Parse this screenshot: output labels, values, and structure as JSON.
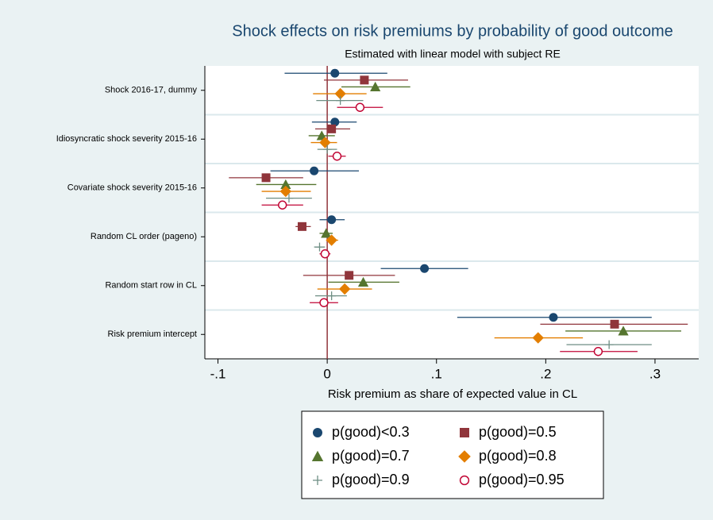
{
  "chart_data": {
    "type": "coefplot",
    "title": "Shock effects on risk premiums by probability of good outcome",
    "subtitle": "Estimated with linear model with subject RE",
    "x_label": "Risk premium as share of expected value in CL",
    "categories": [
      "Shock 2016-17, dummy",
      "Idiosyncratic shock severity 2015-16",
      "Covariate shock severity 2015-16",
      "Random CL order (pageno)",
      "Random start row in CL",
      "Risk premium intercept"
    ],
    "xlim": [
      -0.112,
      0.34
    ],
    "xticks": [
      {
        "value": -0.1,
        "label": "-.1"
      },
      0,
      {
        "value": 0.1,
        "label": ".1"
      },
      {
        "value": 0.2,
        "label": ".2"
      },
      {
        "value": 0.3,
        "label": ".3"
      }
    ],
    "reference_x": 0,
    "series": [
      {
        "name": "p(good)<0.3",
        "color": "#1a476f",
        "marker": "circle",
        "values": [
          0.007,
          0.007,
          -0.012,
          0.004,
          0.089,
          0.207
        ],
        "ci_low": [
          -0.039,
          -0.014,
          -0.052,
          -0.007,
          0.049,
          0.119
        ],
        "ci_high": [
          0.055,
          0.027,
          0.029,
          0.016,
          0.129,
          0.297
        ]
      },
      {
        "name": "p(good)=0.5",
        "color": "#90353b",
        "marker": "square",
        "values": [
          0.034,
          0.004,
          -0.056,
          -0.023,
          0.02,
          0.263
        ],
        "ci_low": [
          -0.003,
          -0.011,
          -0.09,
          -0.029,
          -0.022,
          0.195
        ],
        "ci_high": [
          0.074,
          0.021,
          -0.022,
          -0.015,
          0.062,
          0.33
        ]
      },
      {
        "name": "p(good)=0.7",
        "color": "#55752f",
        "marker": "triangle",
        "values": [
          0.044,
          -0.005,
          -0.038,
          -0.001,
          0.033,
          0.271
        ],
        "ci_low": [
          0.013,
          -0.017,
          -0.065,
          -0.007,
          0.001,
          0.218
        ],
        "ci_high": [
          0.076,
          0.007,
          -0.01,
          0.005,
          0.066,
          0.324
        ]
      },
      {
        "name": "p(good)=0.8",
        "color": "#e37e00",
        "marker": "diamond",
        "values": [
          0.012,
          -0.002,
          -0.038,
          0.004,
          0.016,
          0.193
        ],
        "ci_low": [
          -0.013,
          -0.015,
          -0.06,
          -0.001,
          -0.009,
          0.153
        ],
        "ci_high": [
          0.036,
          0.009,
          -0.015,
          0.01,
          0.041,
          0.234
        ]
      },
      {
        "name": "p(good)=0.9",
        "color": "#6e8e84",
        "marker": "plus",
        "values": [
          0.012,
          0,
          -0.035,
          -0.007,
          0.004,
          0.258
        ],
        "ci_low": [
          -0.01,
          -0.009,
          -0.056,
          -0.012,
          -0.011,
          0.219
        ],
        "ci_high": [
          0.033,
          0.009,
          -0.014,
          -0.002,
          0.018,
          0.297
        ]
      },
      {
        "name": "p(good)=0.95",
        "color": "#c10534",
        "marker": "hollow-circle",
        "values": [
          0.03,
          0.009,
          -0.041,
          -0.002,
          -0.003,
          0.248
        ],
        "ci_low": [
          0.009,
          0.001,
          -0.06,
          -0.007,
          -0.016,
          0.213
        ],
        "ci_high": [
          0.051,
          0.017,
          -0.022,
          0.003,
          0.01,
          0.284
        ]
      }
    ]
  }
}
